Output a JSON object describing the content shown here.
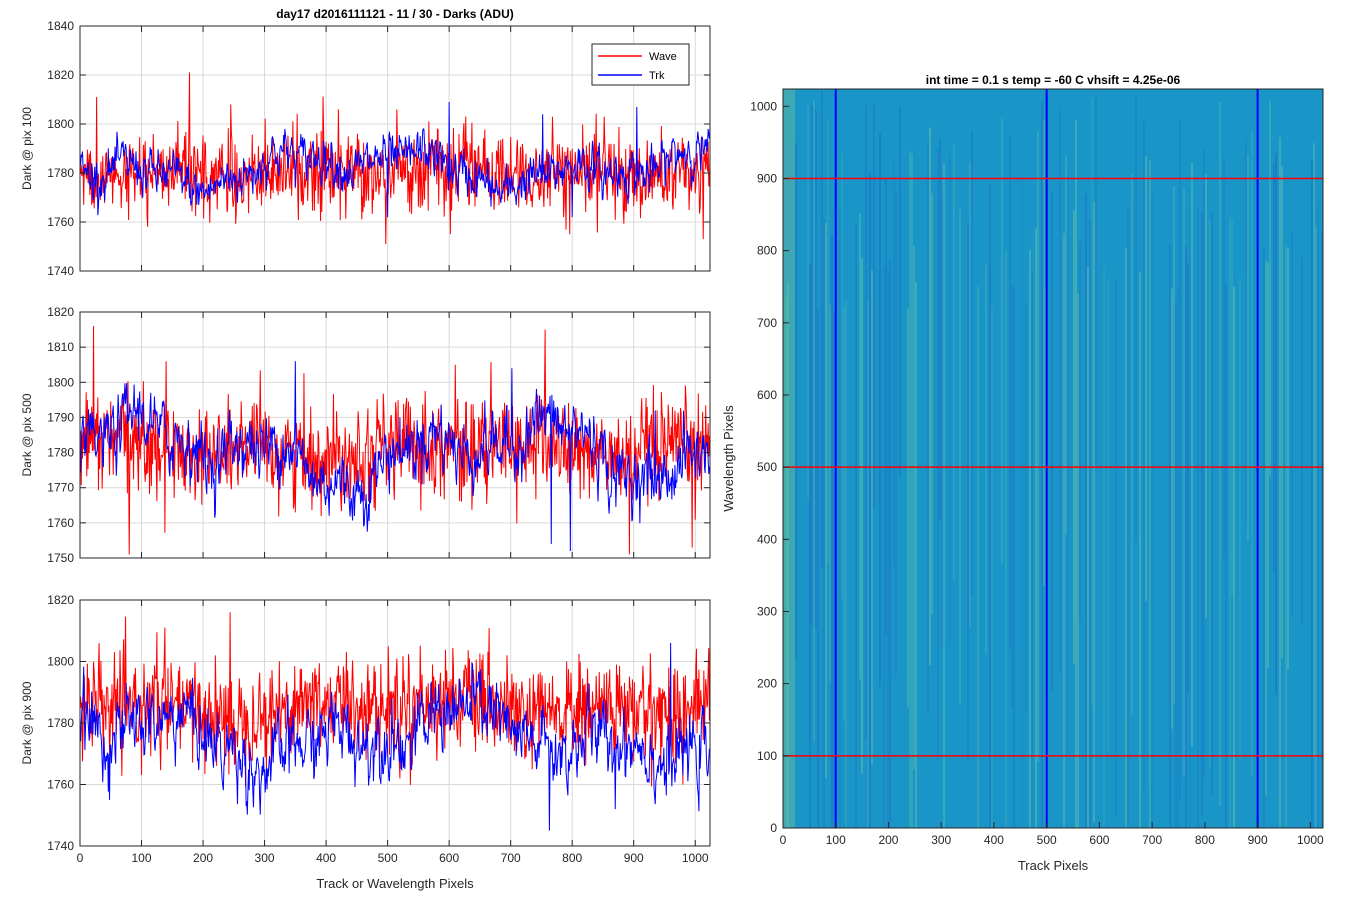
{
  "figure": {
    "suptitle": "day17 d2016111121 - 11 / 30 - Darks (ADU)"
  },
  "colors": {
    "wave": "#ff0000",
    "trk": "#0000ff",
    "grid": "#d9d9d9",
    "heat_base": "#1a95c8",
    "heat_light": "#4fb7b0",
    "heat_dark": "#1d73c6"
  },
  "chart_data": [
    {
      "type": "line",
      "xlabel": "",
      "ylabel": "Dark @ pix 100",
      "xlim": [
        0,
        1024
      ],
      "ylim": [
        1740,
        1840
      ],
      "xticks": [
        0,
        100,
        200,
        300,
        400,
        500,
        600,
        700,
        800,
        900,
        1000
      ],
      "yticks": [
        1740,
        1760,
        1780,
        1800,
        1820,
        1840
      ],
      "show_xtick_labels": false,
      "grid": true,
      "legend": "top-right",
      "series": [
        {
          "name": "Wave",
          "mean": 1780,
          "noise_sd": 8,
          "drift_amp": 1.5,
          "spikes": [
            [
              27,
              1811
            ],
            [
              178,
              1821
            ],
            [
              110,
              1758
            ],
            [
              245,
              1808
            ],
            [
              420,
              1806
            ],
            [
              497,
              1751
            ],
            [
              567,
              1801
            ],
            [
              796,
              1755
            ],
            [
              852,
              1803
            ],
            [
              1013,
              1753
            ]
          ]
        },
        {
          "name": "Trk",
          "mean": 1782,
          "noise_sd": 4,
          "drift_amp": 7,
          "spikes": [
            [
              600,
              1809
            ],
            [
              752,
              1804
            ],
            [
              905,
              1807
            ],
            [
              500,
              1762
            ],
            [
              800,
              1762
            ]
          ]
        }
      ]
    },
    {
      "type": "line",
      "xlabel": "",
      "ylabel": "Dark @ pix 500",
      "xlim": [
        0,
        1024
      ],
      "ylim": [
        1750,
        1820
      ],
      "xticks": [
        0,
        100,
        200,
        300,
        400,
        500,
        600,
        700,
        800,
        900,
        1000
      ],
      "yticks": [
        1750,
        1760,
        1770,
        1780,
        1790,
        1800,
        1810,
        1820
      ],
      "show_xtick_labels": false,
      "grid": true,
      "legend": "none",
      "series": [
        {
          "name": "Wave",
          "mean": 1781,
          "noise_sd": 7,
          "drift_amp": 2,
          "spikes": [
            [
              22,
              1816
            ],
            [
              80,
              1751
            ],
            [
              140,
              1806
            ],
            [
              350,
              1763
            ],
            [
              522,
              1773
            ],
            [
              756,
              1815
            ],
            [
              893,
              1751
            ],
            [
              995,
              1753
            ],
            [
              610,
              1805
            ]
          ]
        },
        {
          "name": "Trk",
          "mean": 1780,
          "noise_sd": 4,
          "drift_amp": 8,
          "spikes": [
            [
              350,
              1806
            ],
            [
              702,
              1804
            ],
            [
              766,
              1754
            ],
            [
              797,
              1752
            ],
            [
              935,
              1792
            ]
          ]
        }
      ]
    },
    {
      "type": "line",
      "xlabel": "Track or Wavelength Pixels",
      "ylabel": "Dark @ pix 900",
      "xlim": [
        0,
        1024
      ],
      "ylim": [
        1740,
        1820
      ],
      "xticks": [
        0,
        100,
        200,
        300,
        400,
        500,
        600,
        700,
        800,
        900,
        1000
      ],
      "yticks": [
        1740,
        1760,
        1780,
        1800,
        1820
      ],
      "show_xtick_labels": true,
      "grid": true,
      "legend": "none",
      "series": [
        {
          "name": "Wave",
          "mean": 1785,
          "noise_sd": 8,
          "drift_amp": 3,
          "spikes": [
            [
              244,
              1816
            ],
            [
              138,
              1811
            ],
            [
              520,
              1762
            ],
            [
              763,
              1793
            ],
            [
              980,
              1760
            ]
          ]
        },
        {
          "name": "Trk",
          "mean": 1776,
          "noise_sd": 5,
          "drift_amp": 8,
          "spikes": [
            [
              763,
              1745
            ],
            [
              960,
              1806
            ],
            [
              310,
              1761
            ],
            [
              48,
              1755
            ],
            [
              870,
              1752
            ]
          ]
        }
      ]
    },
    {
      "type": "heatmap",
      "title": "int time = 0.1 s   temp = -60 C   vhsift = 4.25e-06",
      "xlabel": "Track Pixels",
      "ylabel": "Wavelength Pixels",
      "xlim": [
        0,
        1024
      ],
      "ylim": [
        0,
        1024
      ],
      "xticks": [
        0,
        100,
        200,
        300,
        400,
        500,
        600,
        700,
        800,
        900,
        1000
      ],
      "yticks": [
        0,
        100,
        200,
        300,
        400,
        500,
        600,
        700,
        800,
        900,
        1000
      ],
      "vertical_markers": [
        100,
        500,
        900
      ],
      "horizontal_markers": [
        100,
        500,
        900
      ],
      "vertical_marker_color": "blue",
      "horizontal_marker_color": "red"
    }
  ]
}
